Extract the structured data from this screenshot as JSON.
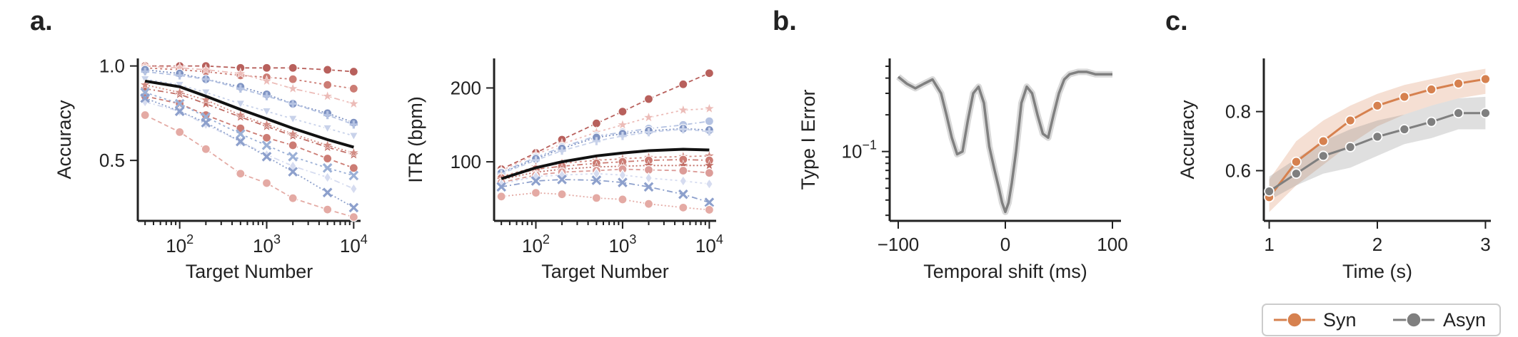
{
  "panels": {
    "a": "a.",
    "b": "b.",
    "c": "c."
  },
  "colors": {
    "mean_line": "#111111",
    "warm": [
      "#b8605c",
      "#c06c64",
      "#cc7c74",
      "#d28c84",
      "#dc9c98",
      "#e4aaa4",
      "#ecbcb8",
      "#f0ccc8"
    ],
    "cool": [
      "#7f93c2",
      "#8da0cc",
      "#9bb0d6",
      "#b4c2e2",
      "#c8d2ea",
      "#d6dcf0"
    ],
    "syn": "#d6814f",
    "asyn": "#7f7f7f",
    "panel_b_line": "#808080"
  },
  "chart_data": [
    {
      "id": "a-accuracy",
      "type": "line",
      "title": "",
      "xlabel": "Target Number",
      "ylabel": "Accuracy",
      "xscale": "log",
      "xlim": [
        33,
        12000
      ],
      "ylim": [
        0.18,
        1.04
      ],
      "xticks": [
        {
          "v": 100,
          "base": "10",
          "exp": "2"
        },
        {
          "v": 1000,
          "base": "10",
          "exp": "3"
        },
        {
          "v": 10000,
          "base": "10",
          "exp": "4"
        }
      ],
      "yticks": [
        {
          "v": 0.5,
          "label": "0.5"
        },
        {
          "v": 1.0,
          "label": "1.0"
        }
      ],
      "x": [
        40,
        100,
        200,
        500,
        1000,
        2000,
        5000,
        10000
      ],
      "mean": [
        0.92,
        0.89,
        0.84,
        0.77,
        0.72,
        0.67,
        0.61,
        0.57
      ],
      "series": [
        {
          "family": "warm",
          "idx": 0,
          "marker": "o",
          "values": [
            1.0,
            1.0,
            1.0,
            0.99,
            0.99,
            0.99,
            0.98,
            0.97
          ]
        },
        {
          "family": "warm",
          "idx": 2,
          "marker": "o",
          "values": [
            0.99,
            0.98,
            0.97,
            0.95,
            0.94,
            0.93,
            0.9,
            0.88
          ]
        },
        {
          "family": "warm",
          "idx": 6,
          "marker": "*",
          "values": [
            1.0,
            0.99,
            0.98,
            0.96,
            0.92,
            0.88,
            0.84,
            0.8
          ]
        },
        {
          "family": "cool",
          "idx": 0,
          "marker": "o",
          "values": [
            0.98,
            0.96,
            0.93,
            0.89,
            0.85,
            0.8,
            0.75,
            0.7
          ]
        },
        {
          "family": "cool",
          "idx": 3,
          "marker": "+",
          "values": [
            0.97,
            0.95,
            0.93,
            0.88,
            0.84,
            0.8,
            0.74,
            0.69
          ]
        },
        {
          "family": "cool",
          "idx": 4,
          "marker": "v",
          "values": [
            0.93,
            0.9,
            0.86,
            0.8,
            0.76,
            0.72,
            0.67,
            0.63
          ]
        },
        {
          "family": "warm",
          "idx": 1,
          "marker": "*",
          "values": [
            0.88,
            0.85,
            0.8,
            0.73,
            0.68,
            0.63,
            0.57,
            0.53
          ]
        },
        {
          "family": "warm",
          "idx": 3,
          "marker": "*",
          "values": [
            0.9,
            0.86,
            0.82,
            0.74,
            0.69,
            0.64,
            0.58,
            0.54
          ]
        },
        {
          "family": "warm",
          "idx": 2,
          "marker": "o",
          "values": [
            0.84,
            0.8,
            0.74,
            0.67,
            0.62,
            0.58,
            0.51,
            0.46
          ]
        },
        {
          "family": "cool",
          "idx": 2,
          "marker": "x",
          "values": [
            0.86,
            0.8,
            0.73,
            0.64,
            0.58,
            0.52,
            0.46,
            0.42
          ]
        },
        {
          "family": "cool",
          "idx": 5,
          "marker": "d",
          "values": [
            0.81,
            0.76,
            0.69,
            0.6,
            0.53,
            0.47,
            0.41,
            0.35
          ]
        },
        {
          "family": "cool",
          "idx": 1,
          "marker": "x",
          "values": [
            0.83,
            0.76,
            0.7,
            0.6,
            0.52,
            0.44,
            0.33,
            0.25
          ]
        },
        {
          "family": "warm",
          "idx": 5,
          "marker": "o",
          "values": [
            0.74,
            0.65,
            0.56,
            0.43,
            0.38,
            0.3,
            0.24,
            0.2
          ]
        }
      ]
    },
    {
      "id": "a-itr",
      "type": "line",
      "title": "",
      "xlabel": "Target Number",
      "ylabel": "ITR (bpm)",
      "xscale": "log",
      "xlim": [
        33,
        12000
      ],
      "ylim": [
        20,
        240
      ],
      "xticks": [
        {
          "v": 100,
          "base": "10",
          "exp": "2"
        },
        {
          "v": 1000,
          "base": "10",
          "exp": "3"
        },
        {
          "v": 10000,
          "base": "10",
          "exp": "4"
        }
      ],
      "yticks": [
        {
          "v": 100,
          "label": "100"
        },
        {
          "v": 200,
          "label": "200"
        }
      ],
      "x": [
        40,
        100,
        200,
        500,
        1000,
        2000,
        5000,
        10000
      ],
      "mean": [
        77,
        92,
        100,
        108,
        112,
        115,
        117,
        116
      ],
      "series": [
        {
          "family": "warm",
          "idx": 0,
          "marker": "o",
          "values": [
            90,
            112,
            130,
            152,
            168,
            185,
            205,
            220
          ]
        },
        {
          "family": "warm",
          "idx": 6,
          "marker": "*",
          "values": [
            88,
            110,
            124,
            140,
            150,
            160,
            170,
            172
          ]
        },
        {
          "family": "cool",
          "idx": 3,
          "marker": "o",
          "values": [
            86,
            106,
            120,
            135,
            140,
            145,
            150,
            155
          ]
        },
        {
          "family": "cool",
          "idx": 0,
          "marker": "o",
          "values": [
            85,
            104,
            118,
            133,
            138,
            142,
            145,
            143
          ]
        },
        {
          "family": "cool",
          "idx": 4,
          "marker": "+",
          "values": [
            84,
            102,
            115,
            128,
            135,
            140,
            144,
            141
          ]
        },
        {
          "family": "warm",
          "idx": 3,
          "marker": "*",
          "values": [
            80,
            93,
            98,
            102,
            104,
            106,
            107,
            108
          ]
        },
        {
          "family": "warm",
          "idx": 2,
          "marker": "o",
          "values": [
            78,
            90,
            94,
            98,
            100,
            102,
            103,
            102
          ]
        },
        {
          "family": "warm",
          "idx": 1,
          "marker": "*",
          "values": [
            76,
            86,
            90,
            93,
            94,
            95,
            95,
            95
          ]
        },
        {
          "family": "warm",
          "idx": 4,
          "marker": "o",
          "values": [
            72,
            82,
            86,
            88,
            90,
            89,
            88,
            85
          ]
        },
        {
          "family": "cool",
          "idx": 5,
          "marker": "d",
          "values": [
            70,
            80,
            82,
            84,
            82,
            78,
            74,
            70
          ]
        },
        {
          "family": "cool",
          "idx": 1,
          "marker": "x",
          "values": [
            66,
            74,
            76,
            75,
            72,
            66,
            56,
            45
          ]
        },
        {
          "family": "warm",
          "idx": 5,
          "marker": "o",
          "values": [
            53,
            58,
            56,
            51,
            49,
            43,
            38,
            35
          ]
        }
      ]
    },
    {
      "id": "b-type1",
      "type": "line",
      "title": "",
      "xlabel": "Temporal shift (ms)",
      "ylabel": "Type I Error",
      "yscale": "log",
      "xlim": [
        -108,
        108
      ],
      "ylim": [
        0.027,
        0.58
      ],
      "xticks": [
        {
          "v": -100,
          "label": "−100"
        },
        {
          "v": 0,
          "label": "0"
        },
        {
          "v": 100,
          "label": "100"
        }
      ],
      "yticks": [
        {
          "v": 0.1,
          "base": "10",
          "exp": "−1"
        }
      ],
      "x": [
        -100,
        -92,
        -84,
        -76,
        -68,
        -60,
        -55,
        -50,
        -45,
        -40,
        -35,
        -30,
        -25,
        -20,
        -15,
        -10,
        -6,
        -3,
        0,
        3,
        6,
        10,
        15,
        20,
        25,
        30,
        35,
        40,
        45,
        50,
        55,
        60,
        68,
        76,
        84,
        92,
        100
      ],
      "y": [
        0.41,
        0.36,
        0.33,
        0.36,
        0.39,
        0.3,
        0.2,
        0.13,
        0.095,
        0.1,
        0.18,
        0.3,
        0.34,
        0.25,
        0.11,
        0.07,
        0.05,
        0.038,
        0.032,
        0.038,
        0.055,
        0.1,
        0.25,
        0.34,
        0.3,
        0.2,
        0.14,
        0.13,
        0.2,
        0.3,
        0.39,
        0.43,
        0.45,
        0.45,
        0.43,
        0.43,
        0.43
      ]
    },
    {
      "id": "c-accuracy",
      "type": "line",
      "title": "",
      "xlabel": "Time (s)",
      "ylabel": "Accuracy",
      "xlim": [
        0.95,
        3.05
      ],
      "ylim": [
        0.43,
        0.98
      ],
      "xticks": [
        {
          "v": 1,
          "label": "1"
        },
        {
          "v": 2,
          "label": "2"
        },
        {
          "v": 3,
          "label": "3"
        }
      ],
      "yticks": [
        {
          "v": 0.6,
          "label": "0.6"
        },
        {
          "v": 0.8,
          "label": "0.8"
        }
      ],
      "x": [
        1.0,
        1.25,
        1.5,
        1.75,
        2.0,
        2.25,
        2.5,
        2.75,
        3.0
      ],
      "series": [
        {
          "name": "Syn",
          "key": "syn",
          "values": [
            0.51,
            0.63,
            0.7,
            0.77,
            0.82,
            0.85,
            0.875,
            0.895,
            0.91
          ],
          "lower": [
            0.46,
            0.55,
            0.62,
            0.69,
            0.75,
            0.79,
            0.82,
            0.845,
            0.86
          ],
          "upper": [
            0.57,
            0.7,
            0.77,
            0.82,
            0.86,
            0.89,
            0.91,
            0.93,
            0.945
          ]
        },
        {
          "name": "Asyn",
          "key": "asyn",
          "values": [
            0.53,
            0.59,
            0.65,
            0.68,
            0.715,
            0.74,
            0.765,
            0.795,
            0.795
          ],
          "lower": [
            0.5,
            0.55,
            0.59,
            0.61,
            0.65,
            0.69,
            0.71,
            0.74,
            0.74
          ],
          "upper": [
            0.58,
            0.64,
            0.7,
            0.74,
            0.77,
            0.79,
            0.82,
            0.845,
            0.85
          ]
        }
      ],
      "legend": {
        "position": "bottom-right",
        "entries": [
          "Syn",
          "Asyn"
        ]
      }
    }
  ]
}
